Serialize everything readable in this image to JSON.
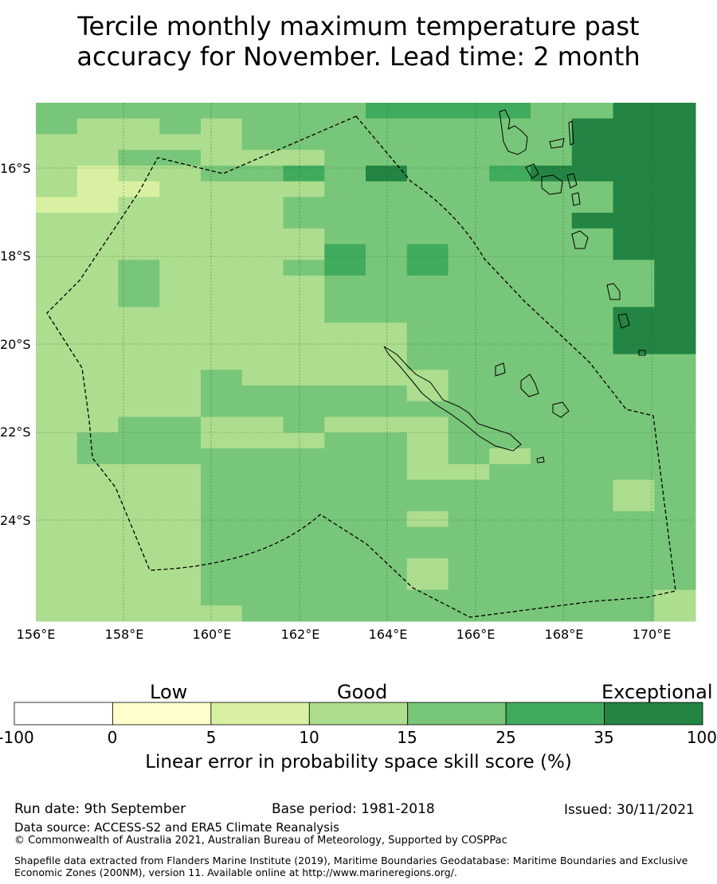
{
  "title": {
    "line1": "Tercile monthly maximum temperature past",
    "line2": "accuracy for November. Lead time: 2 month"
  },
  "map": {
    "lon_labels": [
      "156°E",
      "158°E",
      "160°E",
      "162°E",
      "164°E",
      "166°E",
      "168°E",
      "170°E"
    ],
    "lat_labels": [
      "16°S",
      "18°S",
      "20°S",
      "22°S",
      "24°S"
    ],
    "grid": [
      "4444444455554466",
      "4334344444444666",
      "3333344444444666",
      "3344333444444666",
      "3233445464456666",
      "3223333444444466",
      "2233334444444466",
      "3333334444444666",
      "3333333444444466",
      "3333333545444466",
      "3343334545444446",
      "3343333444444446",
      "3343333444444446",
      "3333333444444466",
      "3333333334444466",
      "3333333334444466",
      "3333333334444444",
      "3333433333444444",
      "3333444443444444",
      "3333444444444444",
      "3344334333444444",
      "3444333443444444",
      "3444444443434444",
      "3333444443344444",
      "3333444444444434",
      "3333444444444434",
      "3333444443444444",
      "3333444444444444",
      "3333444444444444",
      "3333444443444444",
      "3333444443444444",
      "3333444444444443",
      "3333344444444443"
    ],
    "cell_colors": [
      "#ffffff",
      "#ffffcc",
      "#d9f0a3",
      "#addd8e",
      "#78c679",
      "#41ab5d",
      "#238443"
    ]
  },
  "colorbar": {
    "categories": [
      "Low",
      "Good",
      "Exceptional"
    ],
    "ticks": [
      "-100",
      "0",
      "5",
      "10",
      "15",
      "25",
      "35",
      "100"
    ],
    "colors": [
      "#ffffff",
      "#ffffcc",
      "#d9f0a3",
      "#addd8e",
      "#78c679",
      "#41ab5d",
      "#238443"
    ],
    "caption": "Linear error in probability space skill score (%)"
  },
  "footer": {
    "run_date": "Run date: 9th September",
    "base_period": "Base period: 1981-2018",
    "issued": "Issued: 30/11/2021",
    "data_source": "Data source: ACCESS-S2 and ERA5 Climate Reanalysis",
    "copyright": "© Commonwealth of Australia 2021, Australian Bureau of Meteorology, Supported by COSPPac",
    "shapefile": "Shapefile data extracted from Flanders Marine Institute (2019), Maritime Boundaries Geodatabase: Maritime Boundaries and Exclusive Economic Zones (200NM), version 11. Available online at http://www.marineregions.org/."
  }
}
